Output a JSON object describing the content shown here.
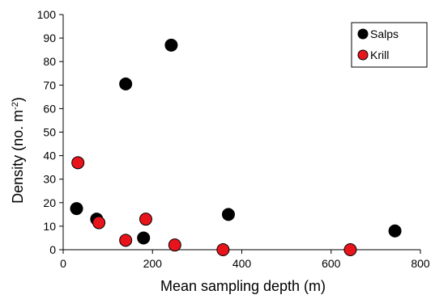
{
  "chart_data": {
    "type": "scatter",
    "title": "",
    "xlabel": "Mean sampling depth (m)",
    "ylabel_main": "Density (no. m",
    "ylabel_sup": "-2",
    "ylabel_close": ")",
    "xlim": [
      0,
      800
    ],
    "ylim": [
      0,
      100
    ],
    "xticks": [
      0,
      200,
      400,
      600,
      800
    ],
    "yticks": [
      0,
      10,
      20,
      30,
      40,
      50,
      60,
      70,
      80,
      90,
      100
    ],
    "grid": false,
    "legend_position": "top-right",
    "series": [
      {
        "name": "Salps",
        "color": "#000000",
        "points": [
          {
            "x": 30,
            "y": 17.5
          },
          {
            "x": 75,
            "y": 13
          },
          {
            "x": 140,
            "y": 70.5
          },
          {
            "x": 180,
            "y": 5
          },
          {
            "x": 242,
            "y": 87
          },
          {
            "x": 370,
            "y": 15
          },
          {
            "x": 743,
            "y": 8
          }
        ]
      },
      {
        "name": "Krill",
        "color": "#e8141b",
        "points": [
          {
            "x": 33,
            "y": 37
          },
          {
            "x": 80,
            "y": 11.5
          },
          {
            "x": 140,
            "y": 4
          },
          {
            "x": 185,
            "y": 13
          },
          {
            "x": 250,
            "y": 2
          },
          {
            "x": 358,
            "y": 0
          },
          {
            "x": 643,
            "y": 0
          }
        ]
      }
    ]
  }
}
